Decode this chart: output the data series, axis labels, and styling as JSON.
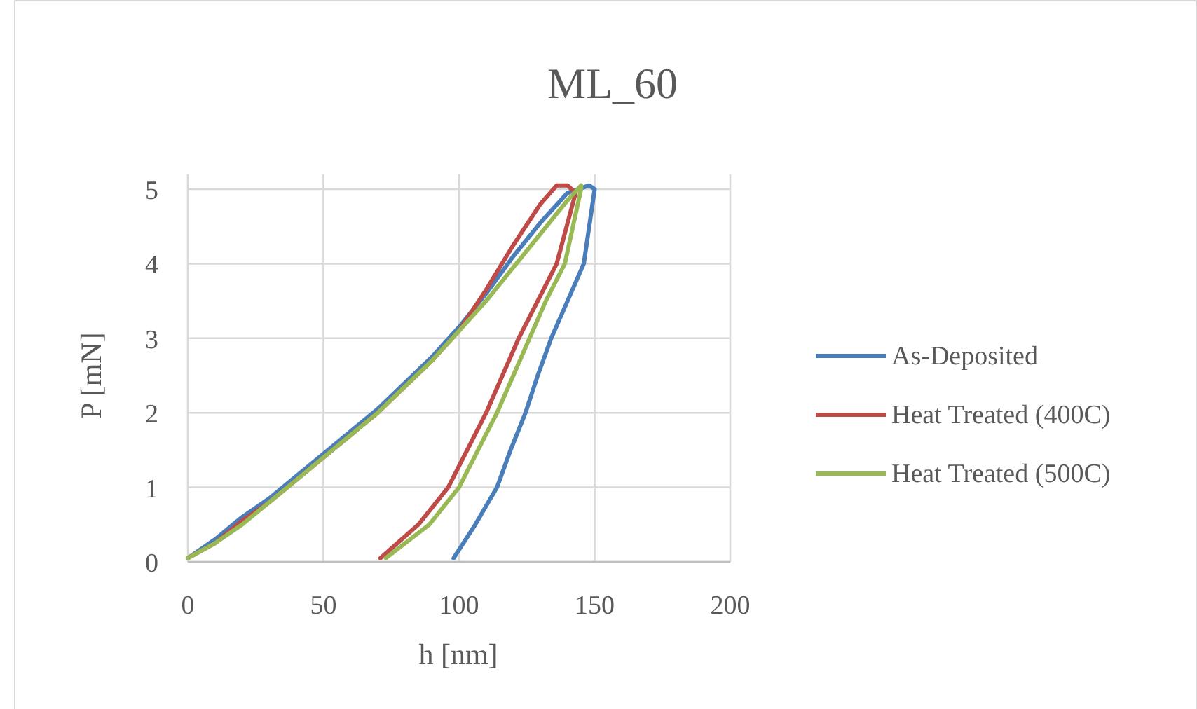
{
  "chart_data": {
    "type": "line",
    "title": "ML_60",
    "xlabel": "h [nm]",
    "ylabel": "P [mN]",
    "xlim": [
      0,
      200
    ],
    "xticks": [
      0,
      50,
      100,
      150,
      200
    ],
    "ylim": [
      0,
      5.2
    ],
    "yticks": [
      0,
      1,
      2,
      3,
      4,
      5
    ],
    "grid": true,
    "legend": "right",
    "line_style": "solid",
    "marker": "none",
    "series": [
      {
        "name": "As-Deposited",
        "color": "#4a7ebb",
        "x": [
          0,
          10,
          20,
          30,
          40,
          50,
          60,
          70,
          80,
          90,
          100,
          110,
          120,
          130,
          140,
          148,
          150,
          146,
          140,
          134,
          129,
          124.5,
          119,
          114,
          106,
          98
        ],
        "values": [
          0.05,
          0.3,
          0.6,
          0.85,
          1.15,
          1.45,
          1.75,
          2.05,
          2.4,
          2.75,
          3.15,
          3.6,
          4.1,
          4.55,
          4.95,
          5.05,
          5.0,
          4,
          3.5,
          3,
          2.5,
          2,
          1.5,
          1,
          0.5,
          0.05
        ]
      },
      {
        "name": "Heat Treated (400C)",
        "color": "#be4b48",
        "x": [
          0,
          10,
          20,
          30,
          40,
          50,
          60,
          70,
          80,
          90,
          100,
          110,
          120,
          130,
          136,
          140,
          143,
          136,
          129,
          122,
          116,
          110,
          103,
          96,
          85,
          71
        ],
        "values": [
          0.05,
          0.25,
          0.55,
          0.8,
          1.1,
          1.4,
          1.7,
          2.0,
          2.35,
          2.7,
          3.1,
          3.65,
          4.25,
          4.8,
          5.05,
          5.05,
          4.95,
          4,
          3.5,
          3,
          2.5,
          2,
          1.5,
          1,
          0.5,
          0.05
        ]
      },
      {
        "name": "Heat Treated (500C)",
        "color": "#98b954",
        "x": [
          0,
          10,
          20,
          30,
          40,
          50,
          60,
          70,
          80,
          90,
          100,
          110,
          120,
          130,
          140,
          145,
          145,
          139,
          132,
          126,
          120,
          114,
          107,
          100,
          89,
          73
        ],
        "values": [
          0.05,
          0.25,
          0.5,
          0.8,
          1.1,
          1.4,
          1.7,
          2.0,
          2.35,
          2.7,
          3.1,
          3.5,
          3.95,
          4.4,
          4.85,
          5.05,
          5.0,
          4,
          3.5,
          3,
          2.5,
          2,
          1.5,
          1,
          0.5,
          0.05
        ]
      }
    ]
  }
}
